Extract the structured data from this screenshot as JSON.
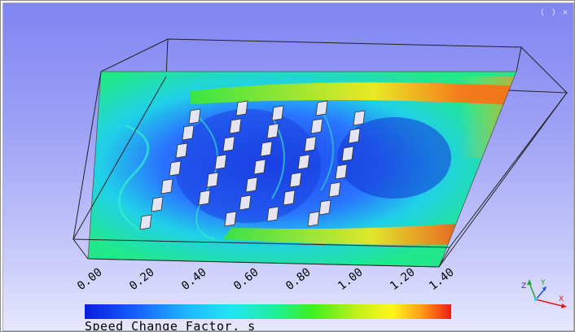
{
  "viewer": {
    "corner_tools": "( ) ✕",
    "colorbar": {
      "title": "Speed Change Factor, s",
      "ticks": [
        "0.00",
        "0.20",
        "0.40",
        "0.60",
        "0.80",
        "1.00",
        "1.20",
        "1.40"
      ],
      "min": 0.0,
      "max": 1.4,
      "colors": {
        "low": "#0a1ddb",
        "mid": "#1ef09a",
        "high": "#ee1b14"
      }
    },
    "axes": {
      "x_label": "X",
      "y_label": "Y",
      "z_label": "Z"
    }
  }
}
